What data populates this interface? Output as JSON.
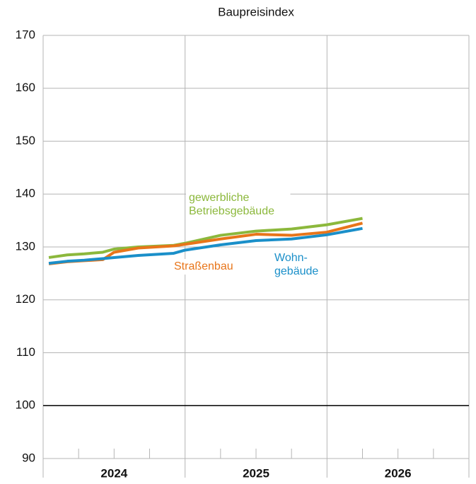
{
  "chart_data": {
    "type": "line",
    "title": "Baupreisindex",
    "x": [
      2024.04,
      2024.17,
      2024.29,
      2024.42,
      2024.5,
      2024.67,
      2024.92,
      2025.0,
      2025.25,
      2025.5,
      2025.75,
      2026.0,
      2026.25
    ],
    "series": [
      {
        "label": [
          "gewerbliche",
          "Betriebsgebäude"
        ],
        "color": "#8cb83c",
        "values": [
          128.0,
          128.5,
          128.7,
          129.0,
          129.6,
          130.0,
          130.3,
          130.7,
          132.2,
          133.0,
          133.4,
          134.2,
          135.4
        ]
      },
      {
        "label": [
          "Straßenbau"
        ],
        "color": "#e8751a",
        "values": [
          126.8,
          127.2,
          127.4,
          127.6,
          129.0,
          129.8,
          130.2,
          130.5,
          131.5,
          132.4,
          132.2,
          132.8,
          134.5
        ]
      },
      {
        "label": [
          "Wohn-",
          "gebäude"
        ],
        "color": "#1a8fc9",
        "values": [
          126.9,
          127.3,
          127.5,
          127.8,
          128.0,
          128.4,
          128.8,
          129.4,
          130.4,
          131.2,
          131.5,
          132.3,
          133.5
        ]
      }
    ],
    "xlim": [
      2024,
      2027
    ],
    "xticks": [
      2024,
      2025,
      2026,
      2027
    ],
    "xminorticks": [
      2024.25,
      2024.5,
      2024.75,
      2025.25,
      2025.5,
      2025.75,
      2026.25,
      2026.5,
      2026.75
    ],
    "xlabels": [
      {
        "value": 2024.5,
        "label": "2024"
      },
      {
        "value": 2025.5,
        "label": "2025"
      },
      {
        "value": 2026.5,
        "label": "2026"
      }
    ],
    "ylim": [
      90,
      170
    ],
    "yticks": [
      90,
      100,
      110,
      120,
      130,
      140,
      150,
      160,
      170
    ],
    "baseline": 100,
    "grid": true
  }
}
